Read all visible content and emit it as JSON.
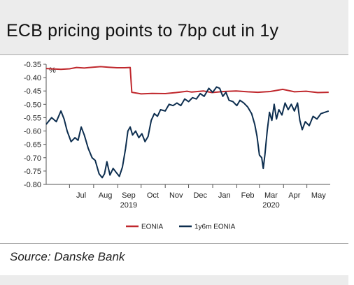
{
  "title": "ECB pricing points to 7bp cut in 1y",
  "source": "Source: Danske Bank",
  "chart_data": {
    "type": "line",
    "unit_label": "%",
    "ylim": [
      -0.8,
      -0.35
    ],
    "y_ticks": [
      -0.35,
      -0.4,
      -0.45,
      -0.5,
      -0.55,
      -0.6,
      -0.65,
      -0.7,
      -0.75,
      -0.8
    ],
    "y_tick_labels": [
      "-0.35",
      "-0.40",
      "-0.45",
      "-0.50",
      "-0.55",
      "-0.60",
      "-0.65",
      "-0.70",
      "-0.75",
      "-0.80"
    ],
    "x_range": [
      "2019-06-01",
      "2020-05-31"
    ],
    "x_month_labels": [
      "Jul",
      "Aug",
      "Sep",
      "Oct",
      "Nov",
      "Dec",
      "Jan",
      "Feb",
      "Mar",
      "Apr",
      "May"
    ],
    "x_month_centers": [
      "2019-07-16",
      "2019-08-16",
      "2019-09-15",
      "2019-10-16",
      "2019-11-15",
      "2019-12-16",
      "2020-01-16",
      "2020-02-15",
      "2020-03-16",
      "2020-04-15",
      "2020-05-16"
    ],
    "x_year_labels": [
      {
        "label": "2019",
        "at": "2019-09-15"
      },
      {
        "label": "2020",
        "at": "2020-03-16"
      }
    ],
    "grid": false,
    "legend": "bottom",
    "series": [
      {
        "name": "EONIA",
        "color": "#c0282d",
        "points": [
          [
            "2019-06-01",
            -0.366
          ],
          [
            "2019-06-20",
            -0.369
          ],
          [
            "2019-07-01",
            -0.367
          ],
          [
            "2019-07-10",
            -0.362
          ],
          [
            "2019-07-20",
            -0.364
          ],
          [
            "2019-07-31",
            -0.361
          ],
          [
            "2019-08-10",
            -0.359
          ],
          [
            "2019-08-20",
            -0.361
          ],
          [
            "2019-08-31",
            -0.363
          ],
          [
            "2019-09-10",
            -0.363
          ],
          [
            "2019-09-17",
            -0.362
          ],
          [
            "2019-09-19",
            -0.455
          ],
          [
            "2019-10-01",
            -0.461
          ],
          [
            "2019-10-15",
            -0.459
          ],
          [
            "2019-11-01",
            -0.46
          ],
          [
            "2019-11-15",
            -0.456
          ],
          [
            "2019-11-29",
            -0.451
          ],
          [
            "2019-12-05",
            -0.454
          ],
          [
            "2019-12-20",
            -0.45
          ],
          [
            "2019-12-31",
            -0.456
          ],
          [
            "2020-01-15",
            -0.452
          ],
          [
            "2020-01-31",
            -0.45
          ],
          [
            "2020-02-15",
            -0.453
          ],
          [
            "2020-02-28",
            -0.455
          ],
          [
            "2020-03-15",
            -0.452
          ],
          [
            "2020-03-31",
            -0.444
          ],
          [
            "2020-04-15",
            -0.453
          ],
          [
            "2020-04-30",
            -0.451
          ],
          [
            "2020-05-15",
            -0.456
          ],
          [
            "2020-05-29",
            -0.455
          ]
        ]
      },
      {
        "name": "1y6m EONIA",
        "color": "#0d2e4f",
        "points": [
          [
            "2019-06-01",
            -0.575
          ],
          [
            "2019-06-08",
            -0.55
          ],
          [
            "2019-06-14",
            -0.565
          ],
          [
            "2019-06-20",
            -0.525
          ],
          [
            "2019-06-24",
            -0.555
          ],
          [
            "2019-06-28",
            -0.6
          ],
          [
            "2019-07-03",
            -0.64
          ],
          [
            "2019-07-08",
            -0.625
          ],
          [
            "2019-07-12",
            -0.635
          ],
          [
            "2019-07-16",
            -0.585
          ],
          [
            "2019-07-20",
            -0.615
          ],
          [
            "2019-07-25",
            -0.665
          ],
          [
            "2019-07-30",
            -0.7
          ],
          [
            "2019-08-03",
            -0.71
          ],
          [
            "2019-08-08",
            -0.76
          ],
          [
            "2019-08-12",
            -0.775
          ],
          [
            "2019-08-15",
            -0.76
          ],
          [
            "2019-08-18",
            -0.715
          ],
          [
            "2019-08-22",
            -0.765
          ],
          [
            "2019-08-26",
            -0.74
          ],
          [
            "2019-08-30",
            -0.755
          ],
          [
            "2019-09-03",
            -0.77
          ],
          [
            "2019-09-07",
            -0.735
          ],
          [
            "2019-09-11",
            -0.665
          ],
          [
            "2019-09-14",
            -0.6
          ],
          [
            "2019-09-17",
            -0.585
          ],
          [
            "2019-09-20",
            -0.615
          ],
          [
            "2019-09-24",
            -0.6
          ],
          [
            "2019-09-28",
            -0.625
          ],
          [
            "2019-10-02",
            -0.61
          ],
          [
            "2019-10-06",
            -0.64
          ],
          [
            "2019-10-10",
            -0.62
          ],
          [
            "2019-10-14",
            -0.56
          ],
          [
            "2019-10-18",
            -0.535
          ],
          [
            "2019-10-22",
            -0.545
          ],
          [
            "2019-10-26",
            -0.52
          ],
          [
            "2019-11-01",
            -0.525
          ],
          [
            "2019-11-06",
            -0.5
          ],
          [
            "2019-11-11",
            -0.505
          ],
          [
            "2019-11-16",
            -0.495
          ],
          [
            "2019-11-21",
            -0.505
          ],
          [
            "2019-11-26",
            -0.48
          ],
          [
            "2019-12-01",
            -0.49
          ],
          [
            "2019-12-06",
            -0.475
          ],
          [
            "2019-12-11",
            -0.48
          ],
          [
            "2019-12-16",
            -0.46
          ],
          [
            "2019-12-21",
            -0.47
          ],
          [
            "2019-12-27",
            -0.44
          ],
          [
            "2020-01-01",
            -0.455
          ],
          [
            "2020-01-06",
            -0.435
          ],
          [
            "2020-01-10",
            -0.44
          ],
          [
            "2020-01-14",
            -0.47
          ],
          [
            "2020-01-18",
            -0.455
          ],
          [
            "2020-01-22",
            -0.485
          ],
          [
            "2020-01-27",
            -0.49
          ],
          [
            "2020-02-01",
            -0.505
          ],
          [
            "2020-02-05",
            -0.485
          ],
          [
            "2020-02-10",
            -0.495
          ],
          [
            "2020-02-15",
            -0.51
          ],
          [
            "2020-02-20",
            -0.535
          ],
          [
            "2020-02-24",
            -0.575
          ],
          [
            "2020-02-27",
            -0.62
          ],
          [
            "2020-03-01",
            -0.69
          ],
          [
            "2020-03-04",
            -0.7
          ],
          [
            "2020-03-06",
            -0.74
          ],
          [
            "2020-03-08",
            -0.69
          ],
          [
            "2020-03-11",
            -0.6
          ],
          [
            "2020-03-14",
            -0.53
          ],
          [
            "2020-03-17",
            -0.56
          ],
          [
            "2020-03-20",
            -0.5
          ],
          [
            "2020-03-23",
            -0.555
          ],
          [
            "2020-03-26",
            -0.52
          ],
          [
            "2020-03-30",
            -0.54
          ],
          [
            "2020-04-03",
            -0.495
          ],
          [
            "2020-04-07",
            -0.52
          ],
          [
            "2020-04-11",
            -0.5
          ],
          [
            "2020-04-15",
            -0.525
          ],
          [
            "2020-04-19",
            -0.495
          ],
          [
            "2020-04-22",
            -0.56
          ],
          [
            "2020-04-25",
            -0.595
          ],
          [
            "2020-04-29",
            -0.565
          ],
          [
            "2020-05-04",
            -0.58
          ],
          [
            "2020-05-09",
            -0.545
          ],
          [
            "2020-05-14",
            -0.555
          ],
          [
            "2020-05-19",
            -0.535
          ],
          [
            "2020-05-24",
            -0.53
          ],
          [
            "2020-05-29",
            -0.525
          ]
        ]
      }
    ]
  }
}
